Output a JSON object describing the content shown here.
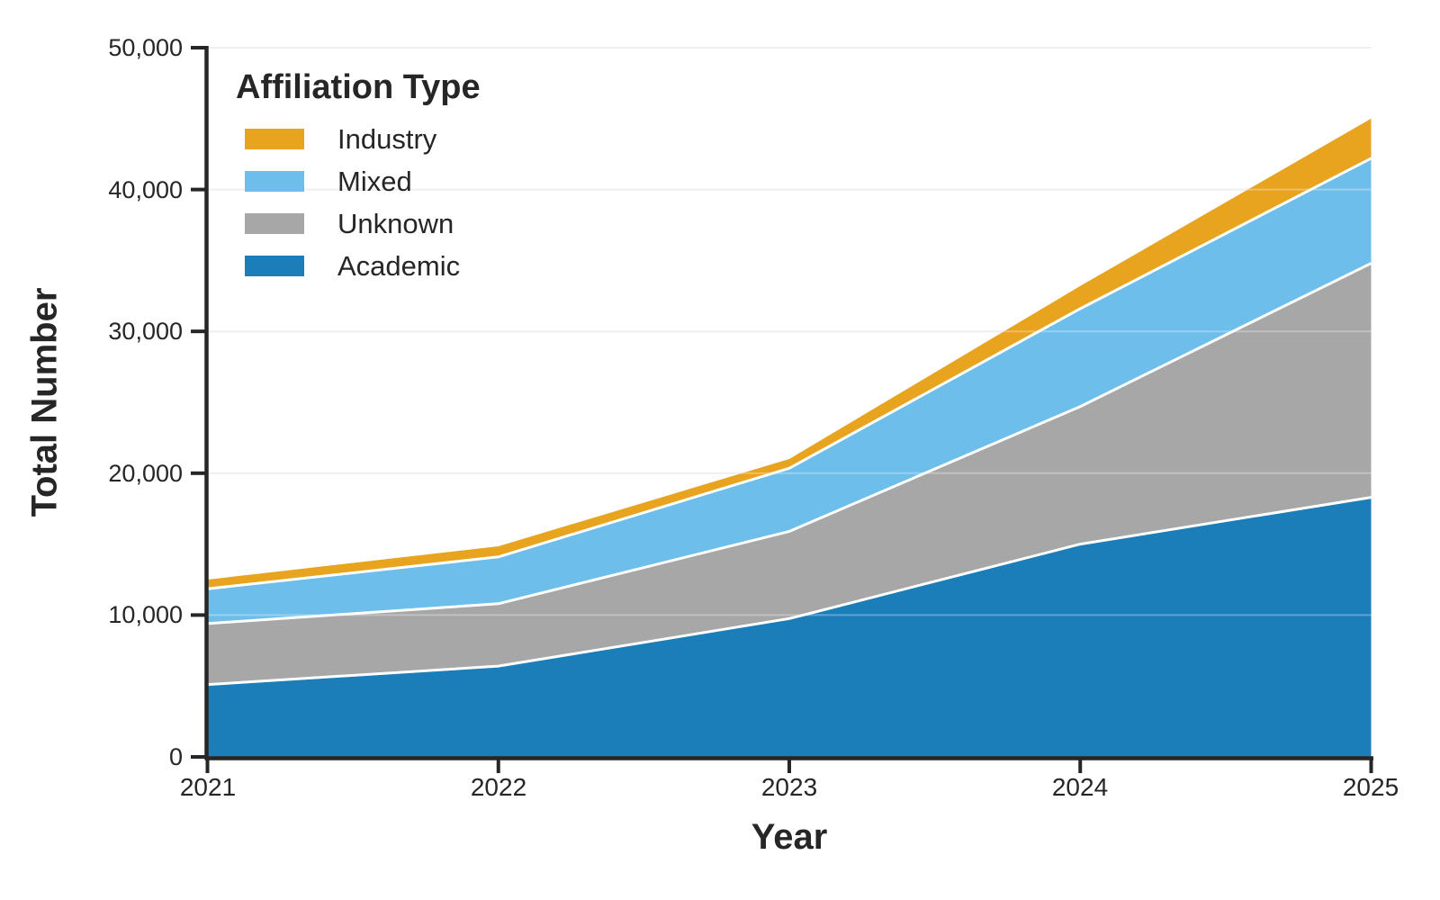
{
  "chart_data": {
    "type": "area",
    "stacked": true,
    "title": "",
    "xlabel": "Year",
    "ylabel": "Total Number",
    "x": [
      2021,
      2022,
      2023,
      2024,
      2025
    ],
    "series": [
      {
        "name": "Academic",
        "color": "#1B7EB8",
        "values": [
          5100,
          6400,
          9750,
          15000,
          18300
        ]
      },
      {
        "name": "Unknown",
        "color": "#A7A7A7",
        "values": [
          4300,
          4400,
          6150,
          9700,
          16500
        ]
      },
      {
        "name": "Mixed",
        "color": "#6DBEEB",
        "values": [
          2450,
          3300,
          4450,
          6900,
          7400
        ]
      },
      {
        "name": "Industry",
        "color": "#E8A41F",
        "values": [
          650,
          750,
          650,
          1600,
          2800
        ]
      }
    ],
    "stacking_order_note": "series listed bottom-to-top",
    "legend": {
      "title": "Affiliation Type",
      "position": "upper-left",
      "items": [
        "Industry",
        "Mixed",
        "Unknown",
        "Academic"
      ]
    },
    "ylim": [
      0,
      50000
    ],
    "y_ticks": [
      "50,000",
      "40,000",
      "30,000",
      "20,000",
      "10,000",
      "0"
    ],
    "x_ticks": [
      "2021",
      "2022",
      "2023",
      "2024",
      "2025"
    ],
    "grid": "horizontal",
    "colors": {
      "text": "#262626",
      "spine": "#262626",
      "gridline": "#E8E8E8",
      "layer_separator": "#FFFFFF"
    }
  }
}
